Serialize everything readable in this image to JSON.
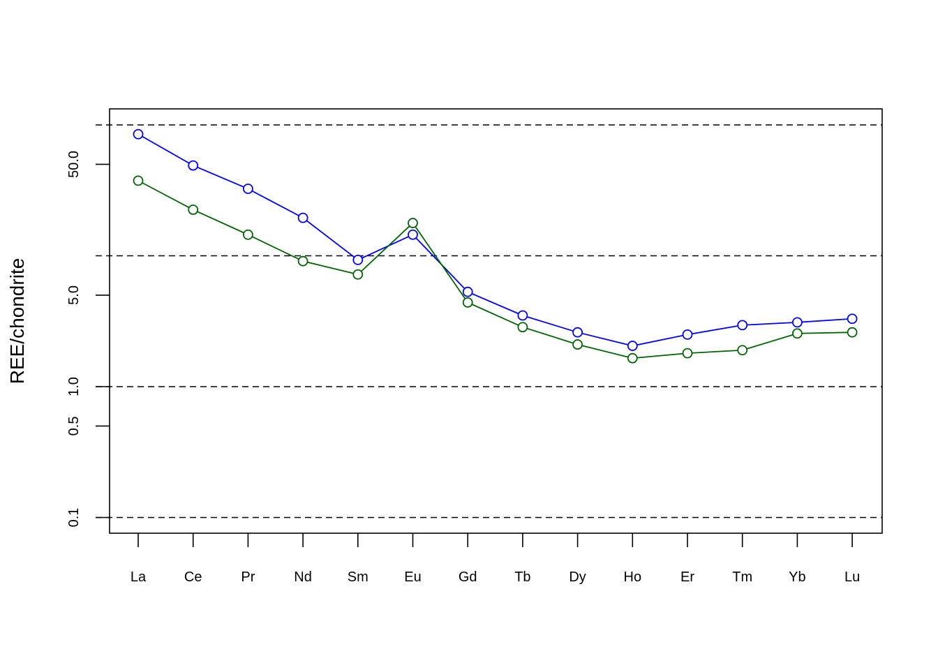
{
  "chart_data": {
    "type": "line",
    "ylabel": "REE/chondrite",
    "yscale": "log",
    "ylim": [
      0.077,
      120
    ],
    "yticks": [
      0.1,
      0.5,
      1.0,
      5.0,
      50.0
    ],
    "ytick_labels": [
      "0.1",
      "0.5",
      "1.0",
      "5.0",
      "50.0"
    ],
    "reference_lines": [
      0.1,
      1,
      10,
      100
    ],
    "grid": false,
    "categories": [
      "La",
      "Ce",
      "Pr",
      "Nd",
      "Sm",
      "Eu",
      "Gd",
      "Tb",
      "Dy",
      "Ho",
      "Er",
      "Tm",
      "Yb",
      "Lu"
    ],
    "series": [
      {
        "color": "#0000ff",
        "values": [
          85,
          49,
          32.5,
          19.5,
          9.3,
          14.5,
          5.3,
          3.5,
          2.6,
          2.05,
          2.5,
          2.95,
          3.1,
          3.3
        ]
      },
      {
        "color": "#006400",
        "values": [
          37.5,
          22.5,
          14.5,
          9.1,
          7.2,
          17.8,
          4.4,
          2.85,
          2.1,
          1.65,
          1.8,
          1.9,
          2.55,
          2.6
        ]
      }
    ]
  }
}
